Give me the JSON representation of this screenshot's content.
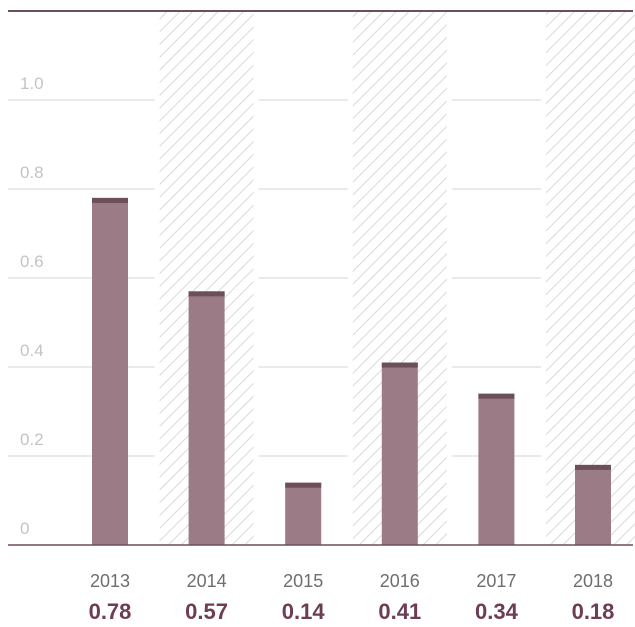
{
  "chart_data": {
    "type": "bar",
    "categories": [
      "2013",
      "2014",
      "2015",
      "2016",
      "2017",
      "2018"
    ],
    "values": [
      0.78,
      0.57,
      0.14,
      0.41,
      0.34,
      0.18
    ],
    "data_labels": [
      "0.78",
      "0.57",
      "0.14",
      "0.41",
      "0.34",
      "0.18"
    ],
    "y_ticks": [
      {
        "value": 0,
        "label": "0"
      },
      {
        "value": 0.2,
        "label": "0.2"
      },
      {
        "value": 0.4,
        "label": "0.4"
      },
      {
        "value": 0.6,
        "label": "0.6"
      },
      {
        "value": 0.8,
        "label": "0.8"
      },
      {
        "value": 1.0,
        "label": "1.0"
      }
    ],
    "ylim": [
      0,
      1.2
    ],
    "grid": true,
    "hatched_categories": [
      "2014",
      "2016",
      "2018"
    ],
    "title": "",
    "xlabel": "",
    "ylabel": ""
  },
  "colors": {
    "bar": "#9a7b86",
    "bar_cap": "#6d4e5b",
    "label": "#6d3c55",
    "axis": "#6d4e5b",
    "grid": "#d6d6d6",
    "hatch": "#c9c9c9"
  }
}
